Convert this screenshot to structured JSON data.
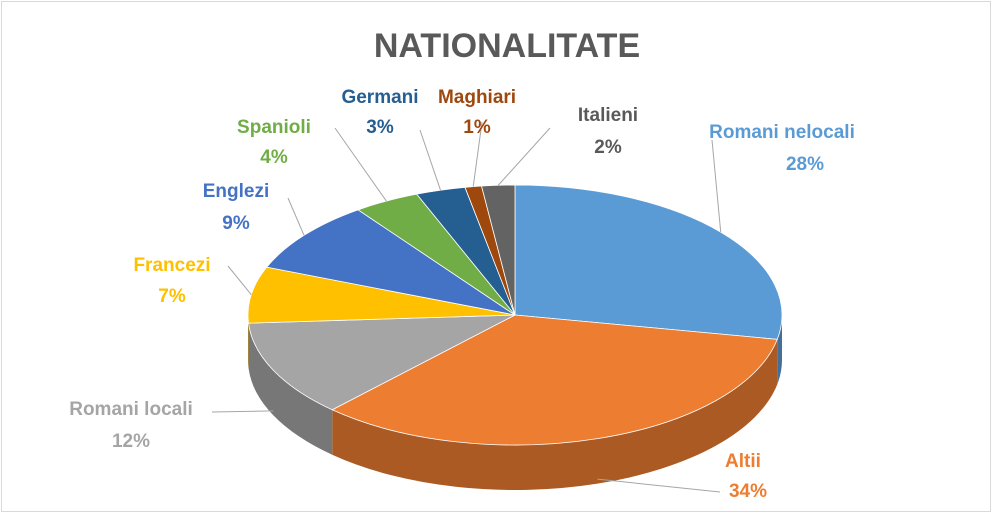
{
  "chart_data": {
    "type": "pie",
    "title": "NATIONALITATE",
    "categories": [
      "Romani nelocali",
      "Altii",
      "Romani locali",
      "Francezi",
      "Englezi",
      "Spanioli",
      "Germani",
      "Maghiari",
      "Italieni"
    ],
    "values": [
      28,
      34,
      12,
      7,
      9,
      4,
      3,
      1,
      2
    ],
    "value_labels": [
      "28%",
      "34%",
      "12%",
      "7%",
      "9%",
      "4%",
      "3%",
      "1%",
      "2%"
    ],
    "colors": [
      "#5b9bd5",
      "#ed7d31",
      "#a5a5a5",
      "#ffc000",
      "#4472c4",
      "#70ad47",
      "#255e91",
      "#9e480e",
      "#636363"
    ]
  }
}
